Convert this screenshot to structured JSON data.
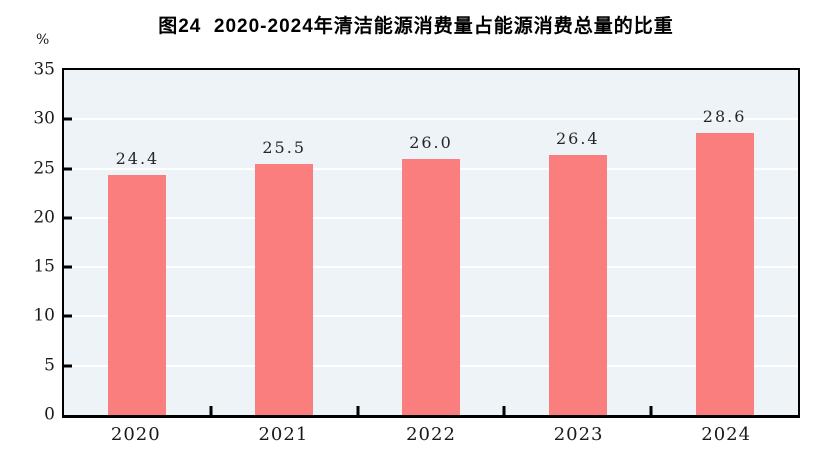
{
  "page": {
    "background": "#ffffff"
  },
  "chart_data": {
    "type": "bar",
    "title": "图24  2020-2024年清洁能源消费量占能源消费总量的比重",
    "unit_label": "%",
    "categories": [
      "2020",
      "2021",
      "2022",
      "2023",
      "2024"
    ],
    "values": [
      24.4,
      25.5,
      26.0,
      26.4,
      28.6
    ],
    "point_labels": [
      "24.4",
      "25.5",
      "26.0",
      "26.4",
      "28.6"
    ],
    "xlabel": "",
    "ylabel": "%",
    "ylim": [
      0,
      35
    ],
    "yticks": [
      0,
      5,
      10,
      15,
      20,
      25,
      30,
      35
    ],
    "grid": "horizontal",
    "legend": "none",
    "colors": {
      "bar": "#fb7e7e",
      "plot_background": "#edf3f6",
      "gridline": "#ffffff",
      "axis": "#000000",
      "text": "#1a1a1a"
    }
  }
}
